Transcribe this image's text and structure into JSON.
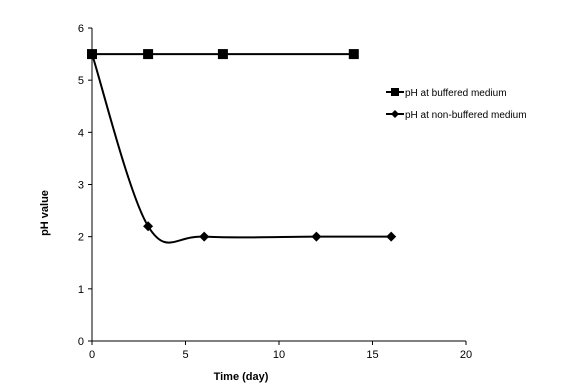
{
  "chart_data": {
    "type": "line",
    "xlabel": "Time (day)",
    "ylabel": "pH value",
    "xlim": [
      0,
      20
    ],
    "ylim": [
      0,
      6
    ],
    "xticks": [
      0,
      5,
      10,
      15,
      20
    ],
    "yticks": [
      0,
      1,
      2,
      3,
      4,
      5,
      6
    ],
    "grid": false,
    "legend_position": "right",
    "series": [
      {
        "name": "pH at buffered medium",
        "marker": "square",
        "smooth": false,
        "color": "#000000",
        "x": [
          0,
          3,
          7,
          14
        ],
        "y": [
          5.5,
          5.5,
          5.5,
          5.5
        ]
      },
      {
        "name": "pH at non-buffered medium",
        "marker": "diamond",
        "smooth": true,
        "color": "#000000",
        "x": [
          0,
          3,
          6,
          12,
          16
        ],
        "y": [
          5.5,
          2.2,
          2.0,
          2.0,
          2.0
        ]
      }
    ]
  }
}
